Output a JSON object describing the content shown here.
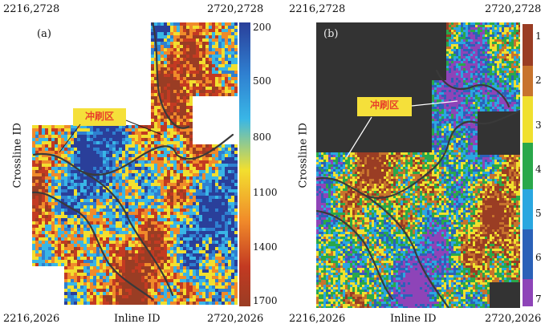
{
  "panel_a": {
    "label": "(a)",
    "corner_top_left": "2216,2728",
    "corner_top_right": "2720,2728",
    "corner_bottom_left": "2216,2026",
    "corner_bottom_right": "2720,2026",
    "xlabel": "Inline ID",
    "ylabel": "Crossline ID",
    "callout": "冲刷区",
    "colorbar_ticks": [
      "200",
      "500",
      "800",
      "1100",
      "1400",
      "1700"
    ]
  },
  "panel_b": {
    "label": "(b)",
    "corner_top_left": "2216,2728",
    "corner_top_right": "2720,2728",
    "corner_bottom_left": "2216,2026",
    "corner_bottom_right": "2720,2026",
    "xlabel": "Inline ID",
    "ylabel": "Crossline ID",
    "callout": "冲刷区",
    "colorbar_ticks": [
      "1",
      "2",
      "3",
      "4",
      "5",
      "6",
      "7"
    ]
  },
  "colors": {
    "continuous": [
      "#2a3f9a",
      "#2f7fd0",
      "#39b6e6",
      "#f2df2f",
      "#f08a2a",
      "#c33a22",
      "#9a3d24"
    ],
    "classes": [
      "#9a3d24",
      "#c7732d",
      "#f0e02e",
      "#2aa84a",
      "#2aa7e0",
      "#2b61b8",
      "#8e44b8"
    ],
    "background_b": "#333333",
    "boundary": "#3a3a3a"
  }
}
